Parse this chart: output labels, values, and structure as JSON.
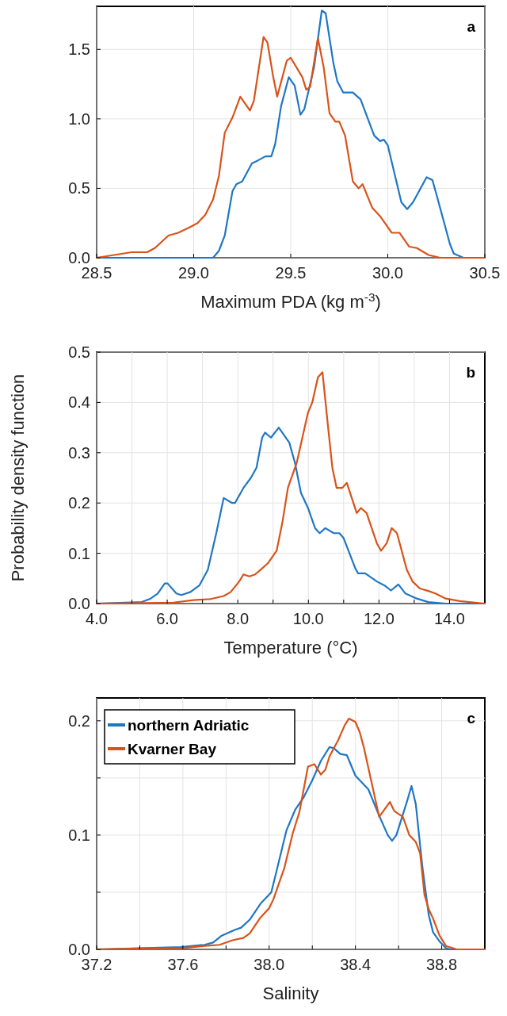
{
  "chart_data": [
    {
      "type": "line",
      "xlabel": "Maximum PDA (kg m$^{-3}$)",
      "annotations": [
        "a"
      ],
      "grid": true,
      "legend": false,
      "xlim": [
        28.5,
        30.5
      ],
      "xticks": [
        28.5,
        {
          "value": 29,
          "label": "29.0"
        },
        29.5,
        {
          "value": 30,
          "label": "30.0"
        },
        30.5
      ],
      "ylim": [
        0,
        1.81
      ],
      "yticks": [
        {
          "value": 0,
          "label": "0.0"
        },
        0.5,
        {
          "value": 1,
          "label": "1.0"
        },
        1.5
      ],
      "series": [
        {
          "color": "#1f77c4",
          "x": [
            28.5,
            29.1,
            29.13,
            29.16,
            29.2,
            29.22,
            29.25,
            29.3,
            29.33,
            29.37,
            29.4,
            29.42,
            29.45,
            29.49,
            29.52,
            29.55,
            29.57,
            29.62,
            29.66,
            29.68,
            29.72,
            29.74,
            29.77,
            29.82,
            29.86,
            29.93,
            29.96,
            29.98,
            30.0,
            30.07,
            30.1,
            30.13,
            30.2,
            30.23,
            30.25,
            30.32,
            30.34,
            30.39,
            30.5
          ],
          "values": [
            0,
            0,
            0.05,
            0.16,
            0.48,
            0.53,
            0.55,
            0.68,
            0.7,
            0.73,
            0.73,
            0.82,
            1.09,
            1.3,
            1.24,
            1.03,
            1.07,
            1.37,
            1.78,
            1.76,
            1.4,
            1.27,
            1.19,
            1.19,
            1.14,
            0.88,
            0.84,
            0.85,
            0.81,
            0.4,
            0.35,
            0.4,
            0.58,
            0.56,
            0.46,
            0.1,
            0.03,
            0,
            0
          ]
        },
        {
          "color": "#d95319",
          "x": [
            28.5,
            28.68,
            28.76,
            28.8,
            28.87,
            28.92,
            28.98,
            29.02,
            29.06,
            29.1,
            29.13,
            29.16,
            29.2,
            29.24,
            29.26,
            29.29,
            29.31,
            29.36,
            29.38,
            29.41,
            29.43,
            29.48,
            29.5,
            29.56,
            29.58,
            29.6,
            29.64,
            29.67,
            29.7,
            29.73,
            29.75,
            29.78,
            29.82,
            29.85,
            29.87,
            29.92,
            29.96,
            30.02,
            30.06,
            30.11,
            30.15,
            30.21,
            30.27,
            30.5
          ],
          "values": [
            0,
            0.04,
            0.04,
            0.07,
            0.16,
            0.18,
            0.22,
            0.25,
            0.31,
            0.42,
            0.59,
            0.9,
            1.01,
            1.16,
            1.12,
            1.06,
            1.13,
            1.59,
            1.55,
            1.3,
            1.16,
            1.42,
            1.44,
            1.3,
            1.21,
            1.23,
            1.58,
            1.37,
            1.04,
            0.98,
            0.98,
            0.88,
            0.55,
            0.5,
            0.53,
            0.36,
            0.3,
            0.18,
            0.18,
            0.08,
            0.07,
            0.02,
            0,
            0
          ]
        }
      ]
    },
    {
      "type": "line",
      "xlabel": "Temperature (°C)",
      "ylabel": "Probability density function",
      "annotations": [
        "b"
      ],
      "grid": true,
      "legend": false,
      "xlim": [
        4,
        15
      ],
      "xticks": [
        {
          "value": 4,
          "label": "4.0"
        },
        {
          "value": 5,
          "label": null
        },
        {
          "value": 6,
          "label": "6.0"
        },
        {
          "value": 7,
          "label": null
        },
        {
          "value": 8,
          "label": "8.0"
        },
        {
          "value": 9,
          "label": null
        },
        {
          "value": 10,
          "label": "10.0"
        },
        {
          "value": 11,
          "label": null
        },
        {
          "value": 12,
          "label": "12.0"
        },
        {
          "value": 13,
          "label": null
        },
        {
          "value": 14,
          "label": "14.0"
        }
      ],
      "ylim": [
        0,
        0.5
      ],
      "yticks": [
        {
          "value": 0,
          "label": "0.0"
        },
        0.1,
        0.2,
        0.3,
        0.4,
        0.5
      ],
      "series": [
        {
          "color": "#1f77c4",
          "x": [
            4,
            5.28,
            5.53,
            5.73,
            5.93,
            6.01,
            6.26,
            6.4,
            6.66,
            6.91,
            7.15,
            7.39,
            7.6,
            7.84,
            7.92,
            8.16,
            8.37,
            8.53,
            8.69,
            8.77,
            8.94,
            9.16,
            9.26,
            9.46,
            9.62,
            9.79,
            9.99,
            10.19,
            10.32,
            10.48,
            10.72,
            10.88,
            11.0,
            11.33,
            11.41,
            11.61,
            11.94,
            12.18,
            12.34,
            12.55,
            12.75,
            13.07,
            13.4,
            13.89,
            15
          ],
          "values": [
            0,
            0.003,
            0.01,
            0.02,
            0.04,
            0.04,
            0.02,
            0.017,
            0.023,
            0.036,
            0.067,
            0.14,
            0.21,
            0.2,
            0.2,
            0.23,
            0.25,
            0.27,
            0.33,
            0.34,
            0.33,
            0.35,
            0.34,
            0.32,
            0.28,
            0.22,
            0.19,
            0.15,
            0.14,
            0.15,
            0.14,
            0.14,
            0.13,
            0.07,
            0.06,
            0.06,
            0.044,
            0.035,
            0.026,
            0.038,
            0.02,
            0.01,
            0.003,
            0,
            0
          ]
        },
        {
          "color": "#d95319",
          "x": [
            4,
            6.18,
            6.74,
            7.23,
            7.6,
            7.8,
            8.04,
            8.16,
            8.33,
            8.49,
            8.69,
            8.85,
            9.1,
            9.26,
            9.42,
            9.67,
            9.83,
            9.99,
            10.11,
            10.27,
            10.4,
            10.56,
            10.68,
            10.8,
            10.96,
            11.09,
            11.37,
            11.49,
            11.65,
            11.94,
            12.06,
            12.22,
            12.36,
            12.51,
            12.79,
            12.95,
            13.16,
            13.4,
            13.6,
            13.89,
            14.29,
            15
          ],
          "values": [
            0,
            0.002,
            0.007,
            0.009,
            0.015,
            0.023,
            0.044,
            0.058,
            0.054,
            0.058,
            0.07,
            0.08,
            0.105,
            0.16,
            0.23,
            0.28,
            0.33,
            0.38,
            0.4,
            0.45,
            0.46,
            0.35,
            0.27,
            0.23,
            0.23,
            0.24,
            0.18,
            0.19,
            0.18,
            0.12,
            0.105,
            0.12,
            0.15,
            0.14,
            0.067,
            0.044,
            0.03,
            0.025,
            0.02,
            0.01,
            0.005,
            0
          ]
        }
      ]
    },
    {
      "type": "line",
      "xlabel": "Salinity",
      "annotations": [
        "c"
      ],
      "grid": true,
      "legend": "top left",
      "xlim": [
        37.2,
        39.0
      ],
      "xticks": [
        37.2,
        {
          "value": 37.4,
          "label": null
        },
        37.6,
        {
          "value": 37.8,
          "label": null
        },
        {
          "value": 38,
          "label": "38.0"
        },
        {
          "value": 38.2,
          "label": null
        },
        38.4,
        {
          "value": 38.6,
          "label": null
        },
        38.8
      ],
      "ylim": [
        0,
        0.22
      ],
      "yticks": [
        {
          "value": 0,
          "label": "0.0"
        },
        {
          "value": 0.05,
          "label": null
        },
        0.1,
        {
          "value": 0.15,
          "label": null
        },
        0.2
      ],
      "series": [
        {
          "name": "northern Adriatic",
          "color": "#1f77c4",
          "x": [
            37.2,
            37.59,
            37.7,
            37.74,
            37.78,
            37.84,
            37.87,
            37.91,
            37.96,
            38.01,
            38.04,
            38.08,
            38.12,
            38.16,
            38.2,
            38.24,
            38.28,
            38.3,
            38.33,
            38.36,
            38.4,
            38.42,
            38.46,
            38.51,
            38.55,
            38.57,
            38.59,
            38.64,
            38.66,
            38.68,
            38.71,
            38.74,
            38.76,
            38.79,
            38.82,
            38.84,
            39.0
          ],
          "values": [
            0,
            0.002,
            0.004,
            0.006,
            0.012,
            0.017,
            0.019,
            0.026,
            0.04,
            0.05,
            0.073,
            0.104,
            0.122,
            0.133,
            0.148,
            0.165,
            0.177,
            0.176,
            0.171,
            0.17,
            0.152,
            0.148,
            0.14,
            0.117,
            0.1,
            0.095,
            0.1,
            0.13,
            0.143,
            0.127,
            0.073,
            0.03,
            0.015,
            0.007,
            0.001,
            0,
            0
          ]
        },
        {
          "name": "Kvarner Bay",
          "color": "#d95319",
          "x": [
            37.2,
            37.44,
            37.59,
            37.7,
            37.77,
            37.83,
            37.88,
            37.91,
            37.96,
            38.0,
            38.02,
            38.07,
            38.11,
            38.14,
            38.18,
            38.21,
            38.24,
            38.26,
            38.28,
            38.32,
            38.35,
            38.37,
            38.4,
            38.42,
            38.44,
            38.51,
            38.56,
            38.58,
            38.62,
            38.65,
            38.68,
            38.7,
            38.72,
            38.74,
            38.76,
            38.79,
            38.82,
            38.87,
            39.0
          ],
          "values": [
            0,
            0.001,
            0.001,
            0.003,
            0.004,
            0.008,
            0.01,
            0.014,
            0.028,
            0.036,
            0.044,
            0.071,
            0.102,
            0.12,
            0.16,
            0.162,
            0.153,
            0.157,
            0.169,
            0.183,
            0.196,
            0.202,
            0.199,
            0.19,
            0.176,
            0.116,
            0.129,
            0.121,
            0.116,
            0.1,
            0.094,
            0.084,
            0.048,
            0.035,
            0.027,
            0.012,
            0.003,
            0,
            0
          ]
        }
      ]
    }
  ]
}
